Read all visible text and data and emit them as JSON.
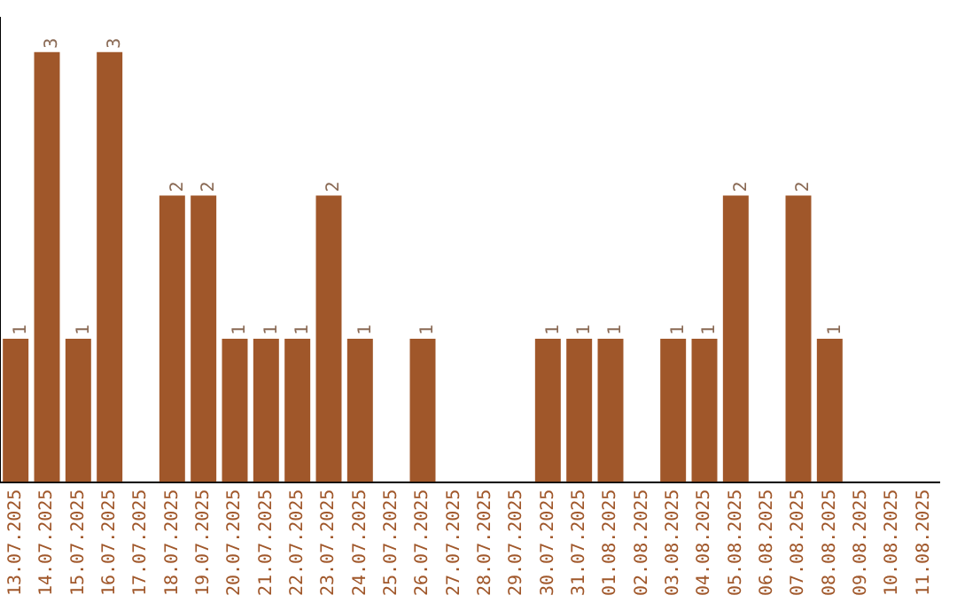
{
  "chart_data": {
    "type": "bar",
    "categories": [
      "13.07.2025",
      "14.07.2025",
      "15.07.2025",
      "16.07.2025",
      "17.07.2025",
      "18.07.2025",
      "19.07.2025",
      "20.07.2025",
      "21.07.2025",
      "22.07.2025",
      "23.07.2025",
      "24.07.2025",
      "25.07.2025",
      "26.07.2025",
      "27.07.2025",
      "28.07.2025",
      "29.07.2025",
      "30.07.2025",
      "31.07.2025",
      "01.08.2025",
      "02.08.2025",
      "03.08.2025",
      "04.08.2025",
      "05.08.2025",
      "06.08.2025",
      "07.08.2025",
      "08.08.2025",
      "09.08.2025",
      "10.08.2025",
      "11.08.2025"
    ],
    "values": [
      1,
      3,
      1,
      3,
      0,
      2,
      2,
      1,
      1,
      1,
      2,
      1,
      0,
      1,
      0,
      0,
      0,
      1,
      1,
      1,
      0,
      1,
      1,
      2,
      0,
      2,
      1,
      0,
      0,
      0
    ],
    "value_labels": [
      "1",
      "3",
      "1",
      "3",
      null,
      "2",
      "2",
      "1",
      "1",
      "1",
      "2",
      "1",
      null,
      "1",
      null,
      null,
      null,
      "1",
      "1",
      "1",
      null,
      "1",
      "1",
      "2",
      null,
      "2",
      "1",
      null,
      null,
      null
    ],
    "color": "#a0572a",
    "tick_labels": "x",
    "grid": false,
    "legend": false
  }
}
